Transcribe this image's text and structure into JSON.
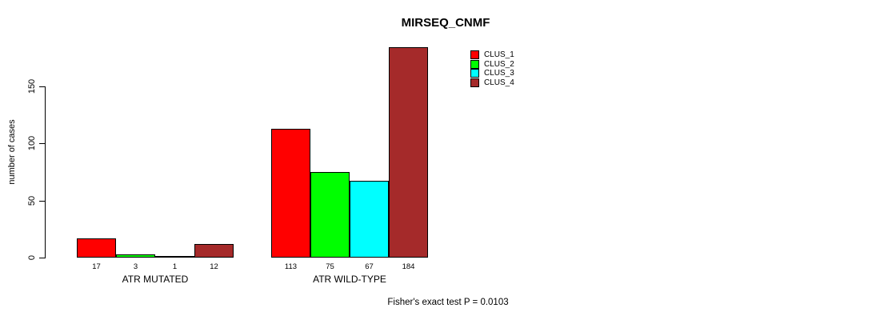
{
  "chart_data": {
    "type": "bar",
    "title": "MIRSEQ_CNMF",
    "xlabel": "",
    "ylabel": "number of cases",
    "categories": [
      "ATR MUTATED",
      "ATR WILD-TYPE"
    ],
    "series": [
      {
        "name": "CLUS_1",
        "color": "#FF0000",
        "values": [
          17,
          113
        ]
      },
      {
        "name": "CLUS_2",
        "color": "#00FF00",
        "values": [
          3,
          75
        ]
      },
      {
        "name": "CLUS_3",
        "color": "#00FFFF",
        "values": [
          1,
          67
        ]
      },
      {
        "name": "CLUS_4",
        "color": "#A52A2A",
        "values": [
          12,
          184
        ]
      }
    ],
    "yticks": [
      0,
      50,
      100,
      150
    ],
    "ylim": [
      0,
      184
    ],
    "bar_value_labels": [
      [
        "17",
        "3",
        "1",
        "12"
      ],
      [
        "113",
        "75",
        "67",
        "184"
      ]
    ],
    "legend_entries": [
      "CLUS_1",
      "CLUS_2",
      "CLUS_3",
      "CLUS_4"
    ],
    "legend_position": "inside-top-right",
    "grid": false
  },
  "footer": "Fisher's exact test P = 0.0103",
  "colors": {
    "background": "#FFFFFF",
    "axis": "#000000",
    "text": "#000000",
    "bar_border": "#000000"
  }
}
